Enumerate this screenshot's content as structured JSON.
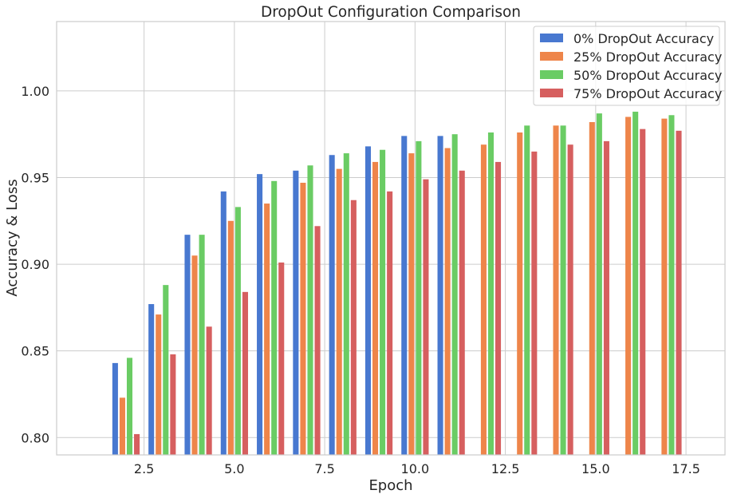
{
  "chart_data": {
    "type": "bar",
    "title": "DropOut Configuration Comparison",
    "xlabel": "Epoch",
    "ylabel": "Accuracy & Loss",
    "xlim": [
      0.08,
      18.58
    ],
    "ylim": [
      0.79,
      1.04
    ],
    "xticks": [
      2.5,
      5.0,
      7.5,
      10.0,
      12.5,
      15.0,
      17.5
    ],
    "xtick_labels": [
      "2.5",
      "5.0",
      "7.5",
      "10.0",
      "12.5",
      "15.0",
      "17.5"
    ],
    "yticks": [
      0.8,
      0.85,
      0.9,
      0.95,
      1.0
    ],
    "ytick_labels": [
      "0.80",
      "0.85",
      "0.90",
      "0.95",
      "1.00"
    ],
    "grid": true,
    "legend_position": "top-right",
    "x": [
      2,
      3,
      4,
      5,
      6,
      7,
      8,
      9,
      10,
      11,
      12,
      13,
      14,
      15,
      16,
      17
    ],
    "series": [
      {
        "name": "0% DropOut Accuracy",
        "color": "#4878d0",
        "values": [
          0.843,
          0.877,
          0.917,
          0.942,
          0.952,
          0.954,
          0.963,
          0.968,
          0.974,
          0.974,
          null,
          null,
          null,
          null,
          null,
          null
        ]
      },
      {
        "name": "25% DropOut Accuracy",
        "color": "#ee854a",
        "values": [
          0.823,
          0.871,
          0.905,
          0.925,
          0.935,
          0.947,
          0.955,
          0.959,
          0.964,
          0.967,
          0.969,
          0.976,
          0.98,
          0.982,
          0.985,
          0.984
        ]
      },
      {
        "name": "50% DropOut Accuracy",
        "color": "#6acc64",
        "values": [
          0.846,
          0.888,
          0.917,
          0.933,
          0.948,
          0.957,
          0.964,
          0.966,
          0.971,
          0.975,
          0.976,
          0.98,
          0.98,
          0.987,
          0.988,
          0.986
        ]
      },
      {
        "name": "75% DropOut Accuracy",
        "color": "#d65f5f",
        "values": [
          0.802,
          0.848,
          0.864,
          0.884,
          0.901,
          0.922,
          0.937,
          0.942,
          0.949,
          0.954,
          0.959,
          0.965,
          0.969,
          0.971,
          0.978,
          0.977
        ]
      }
    ]
  }
}
